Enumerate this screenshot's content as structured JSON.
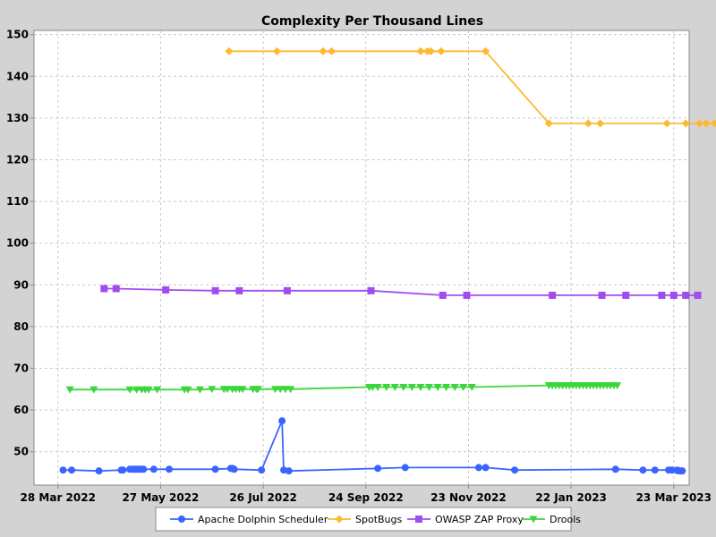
{
  "chart_data": {
    "type": "line",
    "title": "Complexity Per Thousand Lines",
    "xlabel": "",
    "ylabel": "",
    "x_ticks": [
      "28 Mar 2022",
      "27 May 2022",
      "26 Jul 2022",
      "24 Sep 2022",
      "23 Nov 2022",
      "22 Jan 2023",
      "23 Mar 2023"
    ],
    "x_tick_days": [
      0,
      60,
      120,
      180,
      240,
      300,
      360
    ],
    "xlim_days": [
      -14,
      369
    ],
    "y_ticks": [
      50,
      60,
      70,
      80,
      90,
      100,
      110,
      120,
      130,
      140,
      150
    ],
    "ylim": [
      42,
      151
    ],
    "grid": true,
    "legend_position": "bottom",
    "series": [
      {
        "name": "Apache Dolphin Scheduler",
        "color": "#3b64ff",
        "marker": "circle",
        "x_days": [
          3,
          8,
          24,
          37,
          38,
          42,
          44,
          45,
          46,
          47,
          48,
          49,
          50,
          56,
          65,
          92,
          101,
          102,
          103,
          119,
          131,
          132,
          135,
          187,
          203,
          246,
          250,
          267,
          326,
          342,
          349,
          357,
          359,
          362,
          362,
          363,
          364,
          365
        ],
        "values": [
          45.6,
          45.6,
          45.4,
          45.6,
          45.6,
          45.8,
          45.8,
          45.8,
          45.8,
          45.8,
          45.8,
          45.8,
          45.8,
          45.8,
          45.8,
          45.8,
          46.0,
          46.0,
          45.8,
          45.6,
          57.4,
          45.6,
          45.4,
          46.0,
          46.2,
          46.2,
          46.2,
          45.6,
          45.8,
          45.6,
          45.6,
          45.6,
          45.6,
          45.6,
          45.5,
          45.4,
          45.4,
          45.4
        ]
      },
      {
        "name": "SpotBugs",
        "color": "#ffb830",
        "marker": "diamond",
        "x_days": [
          100,
          128,
          155,
          160,
          212,
          216,
          218,
          224,
          250,
          287,
          310,
          317,
          356,
          367,
          375,
          379,
          384,
          389,
          391
        ],
        "values": [
          146.0,
          146.0,
          146.0,
          146.0,
          146.0,
          146.0,
          146.0,
          146.0,
          146.0,
          128.7,
          128.7,
          128.7,
          128.7,
          128.7,
          128.7,
          128.7,
          128.7,
          128.7,
          128.7
        ]
      },
      {
        "name": "OWASP ZAP Proxy",
        "color": "#a04df0",
        "marker": "square",
        "x_days": [
          27,
          34,
          63,
          92,
          106,
          134,
          183,
          225,
          239,
          289,
          318,
          332,
          353,
          360,
          367,
          374
        ],
        "values": [
          89.1,
          89.1,
          88.8,
          88.6,
          88.6,
          88.6,
          88.6,
          87.5,
          87.5,
          87.5,
          87.5,
          87.5,
          87.5,
          87.5,
          87.5,
          87.5
        ]
      },
      {
        "name": "Drools",
        "color": "#3cd63c",
        "marker": "triangle-down",
        "x_days": [
          7,
          21,
          42,
          46,
          49,
          51,
          53,
          58,
          74,
          76,
          83,
          90,
          97,
          99,
          102,
          104,
          106,
          108,
          114,
          116,
          117,
          127,
          130,
          133,
          136,
          182,
          184,
          187,
          192,
          197,
          202,
          207,
          212,
          217,
          222,
          227,
          232,
          237,
          242,
          287,
          289,
          291,
          293,
          295,
          297,
          299,
          301,
          303,
          305,
          307,
          309,
          311,
          313,
          315,
          317,
          319,
          321,
          323,
          325,
          327
        ],
        "values": [
          64.9,
          64.9,
          64.9,
          64.9,
          64.9,
          64.9,
          64.9,
          64.9,
          64.9,
          64.9,
          64.9,
          65.0,
          65.0,
          65.0,
          65.0,
          65.0,
          65.0,
          65.0,
          65.0,
          65.0,
          65.0,
          65.0,
          65.0,
          65.0,
          65.0,
          65.5,
          65.5,
          65.5,
          65.5,
          65.5,
          65.5,
          65.5,
          65.5,
          65.5,
          65.5,
          65.5,
          65.5,
          65.5,
          65.5,
          65.9,
          65.9,
          65.9,
          65.9,
          65.9,
          65.9,
          65.9,
          65.9,
          65.9,
          65.9,
          65.9,
          65.9,
          65.9,
          65.9,
          65.9,
          65.9,
          65.9,
          65.9,
          65.9,
          65.9,
          65.9
        ]
      }
    ]
  }
}
